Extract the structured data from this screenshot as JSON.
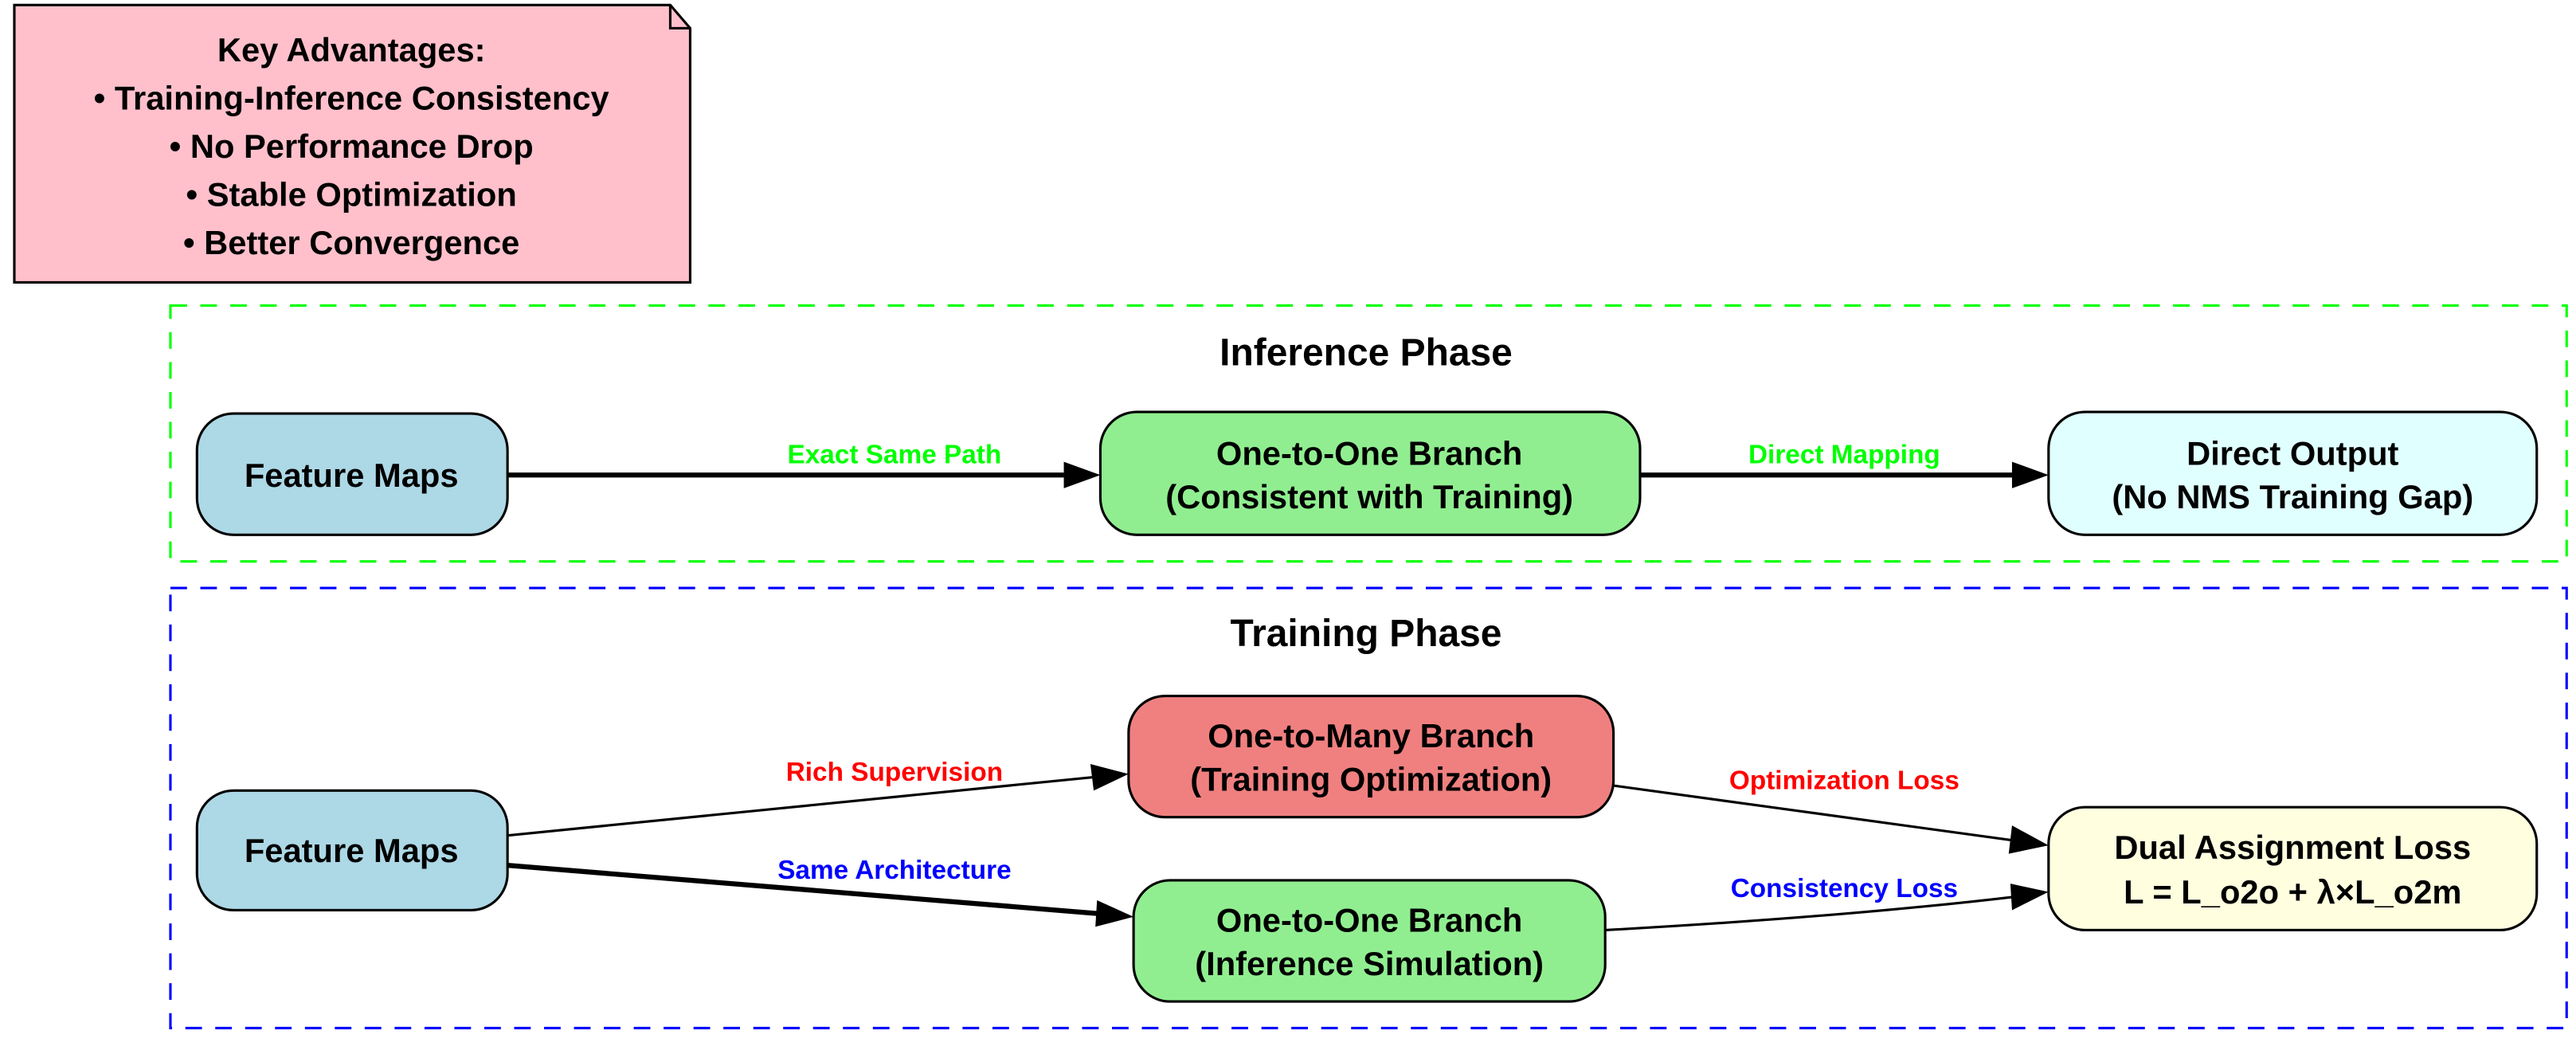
{
  "note": {
    "lines": [
      "Key Advantages:",
      "• Training-Inference Consistency",
      "• No Performance Drop",
      "• Stable Optimization",
      "• Better Convergence"
    ],
    "fill": "#ffc0cb"
  },
  "inference": {
    "title": "Inference Phase",
    "border_color": "#00ff00",
    "feature_maps": {
      "lines": [
        "Feature Maps"
      ],
      "fill": "#add8e6"
    },
    "one_to_one": {
      "lines": [
        "One-to-One Branch",
        "(Consistent with Training)"
      ],
      "fill": "#90ee90"
    },
    "output": {
      "lines": [
        "Direct Output",
        "(No NMS Training Gap)"
      ],
      "fill": "#e0ffff"
    },
    "edges": {
      "exact_same_path": {
        "label": "Exact Same Path",
        "color": "#00ff00"
      },
      "direct_mapping": {
        "label": "Direct Mapping",
        "color": "#00ff00"
      }
    }
  },
  "training": {
    "title": "Training Phase",
    "border_color": "#0000ff",
    "feature_maps": {
      "lines": [
        "Feature Maps"
      ],
      "fill": "#add8e6"
    },
    "one_to_many": {
      "lines": [
        "One-to-Many Branch",
        "(Training Optimization)"
      ],
      "fill": "#f08080"
    },
    "one_to_one": {
      "lines": [
        "One-to-One Branch",
        "(Inference Simulation)"
      ],
      "fill": "#90ee90"
    },
    "loss": {
      "lines": [
        "Dual Assignment Loss",
        "L = L_o2o + λ×L_o2m"
      ],
      "fill": "#ffffe0"
    },
    "edges": {
      "rich_supervision": {
        "label": "Rich Supervision",
        "color": "#ff0000"
      },
      "same_architecture": {
        "label": "Same Architecture",
        "color": "#0000ff"
      },
      "optimization_loss": {
        "label": "Optimization Loss",
        "color": "#ff0000"
      },
      "consistency_loss": {
        "label": "Consistency Loss",
        "color": "#0000ff"
      }
    }
  }
}
